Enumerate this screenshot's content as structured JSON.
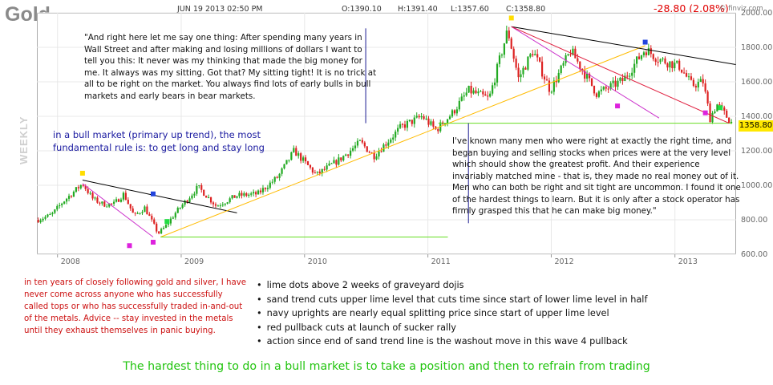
{
  "header": {
    "title": "Gold",
    "date": "JUN 19 2013 02:50 PM",
    "open": "O:1390.10",
    "high": "H:1391.40",
    "low": "L:1357.60",
    "close": "C:1358.80",
    "change": "-28.80 (2.08%)",
    "watermark": "© finviz.com"
  },
  "side_label": "WEEKLY",
  "last_price_tag": "1358.80",
  "quote_top": "\"And right here let me say one thing:  After spending many years in Wall Street and after making and losing millions of dollars I want to tell you this:  It never was my thinking that made the big money for me.  It always was my sitting.  Got that?  My sitting tight!  It is no trick at all to be right on the market.  You always find lots of early bulls in bull markets and early bears in bear markets.",
  "quote_bottom": "I've known many men who were right at exactly the right time, and began buying and selling stocks when prices were at the very level which should show the greatest profit.  And their experience invariably matched mine - that is, they made no real money out of it.  Men who can both be right and sit tight are uncommon.  I found it one of the hardest things to learn.  But it is only after a stock operator has firmly grasped this that he can make big money.\"",
  "bull_note": "in a bull market (primary up trend), the most fundamental rule is: to get long and stay long",
  "red_note": "in ten years of closely following gold and silver, I have never come across anyone who has successfully called tops or who has successfully traded in-and-out of the metals.  Advice -- stay invested in the metals until they exhaust themselves in panic buying.",
  "bullets": [
    "lime dots above 2 weeks of graveyard dojis",
    "sand trend cuts upper lime level that cuts time since start of lower lime level in half",
    "navy uprights are nearly equal splitting price since start of upper lime level",
    "red pullback cuts at launch of sucker rally",
    "action since end of sand trend line is the washout move in this wave 4 pullback"
  ],
  "footer": "The hardest thing to do in a bull market is to take a position and then to refrain from trading",
  "colors": {
    "up": "#22aa22",
    "down": "#dd2222",
    "lime": "#66dd22",
    "sand": "#ffbb00",
    "navy": "#1a1a90",
    "red_line": "#e02040",
    "magenta": "#cc33cc",
    "black_line": "#000000",
    "marker_yellow": "#ffdd00",
    "marker_blue": "#2244dd",
    "marker_magenta": "#dd22dd",
    "marker_green": "#22dd44",
    "price_tag": "#ffe800"
  },
  "chart_data": {
    "type": "candlestick",
    "title": "Gold",
    "interval": "weekly",
    "x_ticks": [
      "2008",
      "2009",
      "2010",
      "2011",
      "2012",
      "2013"
    ],
    "y_ticks": [
      600,
      800,
      1000,
      1200,
      1400,
      1600,
      1800,
      2000
    ],
    "ylim": [
      600,
      2000
    ],
    "xlim": [
      "2007-11",
      "2013-07"
    ],
    "last_price": 1358.8,
    "weekly_close_path": [
      {
        "date": "2007-11-05",
        "close": 800
      },
      {
        "date": "2007-12-15",
        "close": 830
      },
      {
        "date": "2008-01-15",
        "close": 900
      },
      {
        "date": "2008-03-15",
        "close": 1010
      },
      {
        "date": "2008-04-15",
        "close": 920
      },
      {
        "date": "2008-05-15",
        "close": 890
      },
      {
        "date": "2008-06-15",
        "close": 890
      },
      {
        "date": "2008-07-15",
        "close": 950
      },
      {
        "date": "2008-08-15",
        "close": 820
      },
      {
        "date": "2008-09-15",
        "close": 870
      },
      {
        "date": "2008-10-25",
        "close": 720
      },
      {
        "date": "2008-11-15",
        "close": 760
      },
      {
        "date": "2008-12-15",
        "close": 840
      },
      {
        "date": "2009-02-20",
        "close": 990
      },
      {
        "date": "2009-04-15",
        "close": 880
      },
      {
        "date": "2009-06-15",
        "close": 940
      },
      {
        "date": "2009-08-15",
        "close": 950
      },
      {
        "date": "2009-10-15",
        "close": 1050
      },
      {
        "date": "2009-12-01",
        "close": 1200
      },
      {
        "date": "2010-02-05",
        "close": 1060
      },
      {
        "date": "2010-04-15",
        "close": 1150
      },
      {
        "date": "2010-06-15",
        "close": 1250
      },
      {
        "date": "2010-07-25",
        "close": 1170
      },
      {
        "date": "2010-10-15",
        "close": 1340
      },
      {
        "date": "2010-12-15",
        "close": 1400
      },
      {
        "date": "2011-01-25",
        "close": 1320
      },
      {
        "date": "2011-03-15",
        "close": 1420
      },
      {
        "date": "2011-05-01",
        "close": 1550
      },
      {
        "date": "2011-07-01",
        "close": 1500
      },
      {
        "date": "2011-08-25",
        "close": 1900
      },
      {
        "date": "2011-09-26",
        "close": 1620
      },
      {
        "date": "2011-11-08",
        "close": 1780
      },
      {
        "date": "2011-12-29",
        "close": 1550
      },
      {
        "date": "2012-02-28",
        "close": 1780
      },
      {
        "date": "2012-05-15",
        "close": 1530
      },
      {
        "date": "2012-08-01",
        "close": 1610
      },
      {
        "date": "2012-10-05",
        "close": 1790
      },
      {
        "date": "2012-11-15",
        "close": 1730
      },
      {
        "date": "2013-01-15",
        "close": 1690
      },
      {
        "date": "2013-02-20",
        "close": 1580
      },
      {
        "date": "2013-03-25",
        "close": 1600
      },
      {
        "date": "2013-04-15",
        "close": 1390
      },
      {
        "date": "2013-05-05",
        "close": 1470
      },
      {
        "date": "2013-06-19",
        "close": 1358.8
      }
    ],
    "trend_lines": [
      {
        "name": "black-2008-downtrend",
        "from": [
          "2008-03-15",
          1030
        ],
        "to": [
          "2009-06-15",
          840
        ]
      },
      {
        "name": "magenta-2008",
        "from": [
          "2008-03-15",
          1010
        ],
        "to": [
          "2008-10-10",
          700
        ]
      },
      {
        "name": "sand-trend",
        "from": [
          "2008-11-01",
          700
        ],
        "to": [
          "2012-10-05",
          1810
        ]
      },
      {
        "name": "lime-lower-level",
        "from": [
          "2008-11-01",
          700
        ],
        "to": [
          "2011-03-01",
          700
        ]
      },
      {
        "name": "lime-upper-level",
        "from": [
          "2011-02-01",
          1360
        ],
        "to": [
          "2013-06-19",
          1360
        ]
      },
      {
        "name": "navy-upright-1",
        "from": [
          "2010-07-01",
          1360
        ],
        "to": [
          "2010-07-01",
          1910
        ]
      },
      {
        "name": "navy-upright-2",
        "from": [
          "2011-05-01",
          1360
        ],
        "to": [
          "2011-05-01",
          780
        ]
      },
      {
        "name": "black-2011-downtrend",
        "from": [
          "2011-09-05",
          1920
        ],
        "to": [
          "2013-06-30",
          1700
        ]
      },
      {
        "name": "magenta-2011",
        "from": [
          "2011-09-05",
          1920
        ],
        "to": [
          "2012-11-15",
          1390
        ]
      },
      {
        "name": "red-pullback",
        "from": [
          "2011-09-05",
          1920
        ],
        "to": [
          "2013-06-10",
          1360
        ]
      }
    ],
    "markers": [
      {
        "color": "yellow",
        "date": "2008-03-15",
        "price": 1070
      },
      {
        "color": "blue",
        "date": "2008-10-10",
        "price": 950
      },
      {
        "color": "magenta",
        "date": "2008-08-01",
        "price": 650
      },
      {
        "color": "magenta",
        "date": "2008-10-10",
        "price": 670
      },
      {
        "color": "green",
        "date": "2008-11-20",
        "price": 790
      },
      {
        "color": "yellow",
        "date": "2011-09-05",
        "price": 1970
      },
      {
        "color": "magenta",
        "date": "2012-07-15",
        "price": 1460
      },
      {
        "color": "blue",
        "date": "2012-10-05",
        "price": 1830
      },
      {
        "color": "magenta",
        "date": "2013-04-01",
        "price": 1420
      },
      {
        "color": "green",
        "date": "2013-05-15",
        "price": 1450
      }
    ]
  }
}
